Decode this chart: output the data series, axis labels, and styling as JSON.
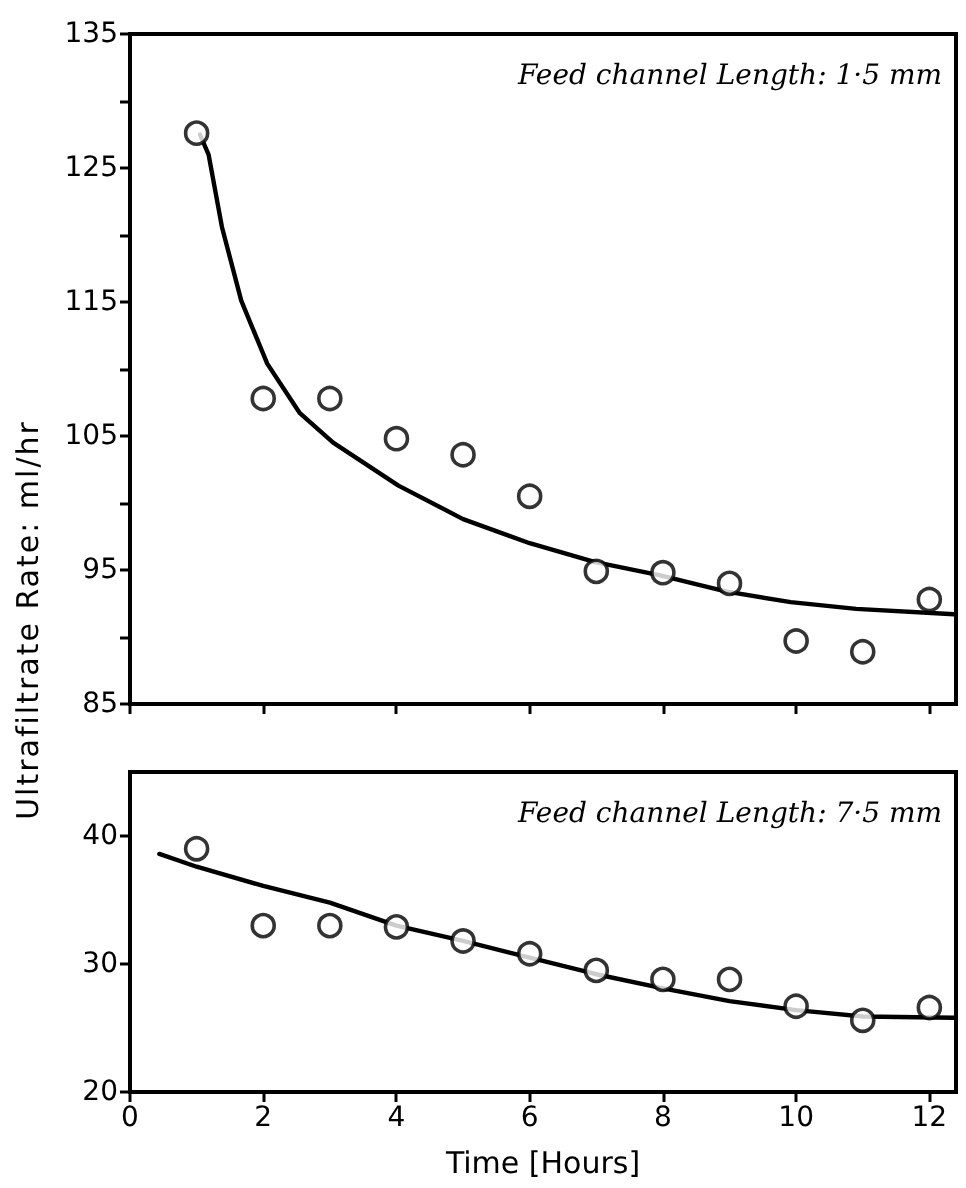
{
  "chart_data": [
    {
      "type": "scatter",
      "ylabel": "Ultrafiltrate Rate: ml/hr",
      "annotations": [
        "Feed channel Length: 1·5 mm"
      ],
      "xlim": [
        0,
        12.4
      ],
      "xticks": [
        {
          "value": 0,
          "label": null
        },
        {
          "value": 2,
          "label": null
        },
        {
          "value": 4,
          "label": null
        },
        {
          "value": 6,
          "label": null
        },
        {
          "value": 8,
          "label": null
        },
        {
          "value": 10,
          "label": null
        },
        {
          "value": 12,
          "label": null
        }
      ],
      "ylim": [
        85,
        135
      ],
      "yticks": [
        85,
        {
          "value": 90,
          "label": null
        },
        95,
        {
          "value": 100,
          "label": null
        },
        105,
        {
          "value": 110,
          "label": null
        },
        115,
        {
          "value": 120,
          "label": null
        },
        125,
        {
          "value": 130,
          "label": null
        },
        135
      ],
      "tick_labels": "y",
      "grid": false,
      "marker": "circle",
      "line_style": "solid",
      "series": [
        {
          "color": "#000000",
          "x": [
            1,
            2,
            3,
            4,
            5,
            6,
            7,
            8,
            9,
            10,
            11,
            12
          ],
          "values": [
            127.6,
            107.8,
            107.8,
            104.8,
            103.6,
            100.5,
            94.9,
            94.8,
            94.0,
            89.7,
            88.9,
            92.8
          ]
        },
        {
          "type": "line",
          "marker": "none",
          "color": "#000000",
          "x": [
            1.05,
            1.18,
            1.38,
            1.67,
            2.06,
            2.55,
            3.05,
            4.03,
            5.0,
            6.0,
            6.97,
            7.96,
            8.94,
            9.92,
            10.9,
            12.37
          ],
          "values": [
            127.5,
            126,
            120.6,
            115.1,
            110.4,
            106.7,
            104.5,
            101.3,
            98.8,
            97.0,
            95.6,
            94.6,
            93.4,
            92.6,
            92.1,
            91.7
          ]
        }
      ]
    },
    {
      "type": "scatter",
      "xlabel": "Time [Hours]",
      "annotations": [
        "Feed channel Length: 7·5 mm"
      ],
      "xlim": [
        0,
        12.4
      ],
      "xticks": [
        0,
        2,
        4,
        6,
        8,
        10,
        12
      ],
      "ylim": [
        20,
        45
      ],
      "yticks": [
        20,
        30,
        40
      ],
      "grid": false,
      "marker": "circle",
      "line_style": "solid",
      "series": [
        {
          "color": "#000000",
          "x": [
            1,
            2,
            3,
            4,
            5,
            6,
            7,
            8,
            9,
            10,
            11,
            12
          ],
          "values": [
            39.0,
            33.0,
            33.0,
            32.9,
            31.8,
            30.8,
            29.5,
            28.8,
            28.8,
            26.7,
            25.6,
            26.6
          ]
        },
        {
          "type": "line",
          "marker": "none",
          "color": "#000000",
          "x": [
            0.44,
            1,
            2,
            3,
            4,
            5,
            6,
            7,
            8,
            9,
            10,
            11,
            12.37
          ],
          "values": [
            38.6,
            37.6,
            36.1,
            34.8,
            33.0,
            31.8,
            30.5,
            29.2,
            28.1,
            27.1,
            26.4,
            25.9,
            25.8
          ]
        }
      ]
    }
  ]
}
